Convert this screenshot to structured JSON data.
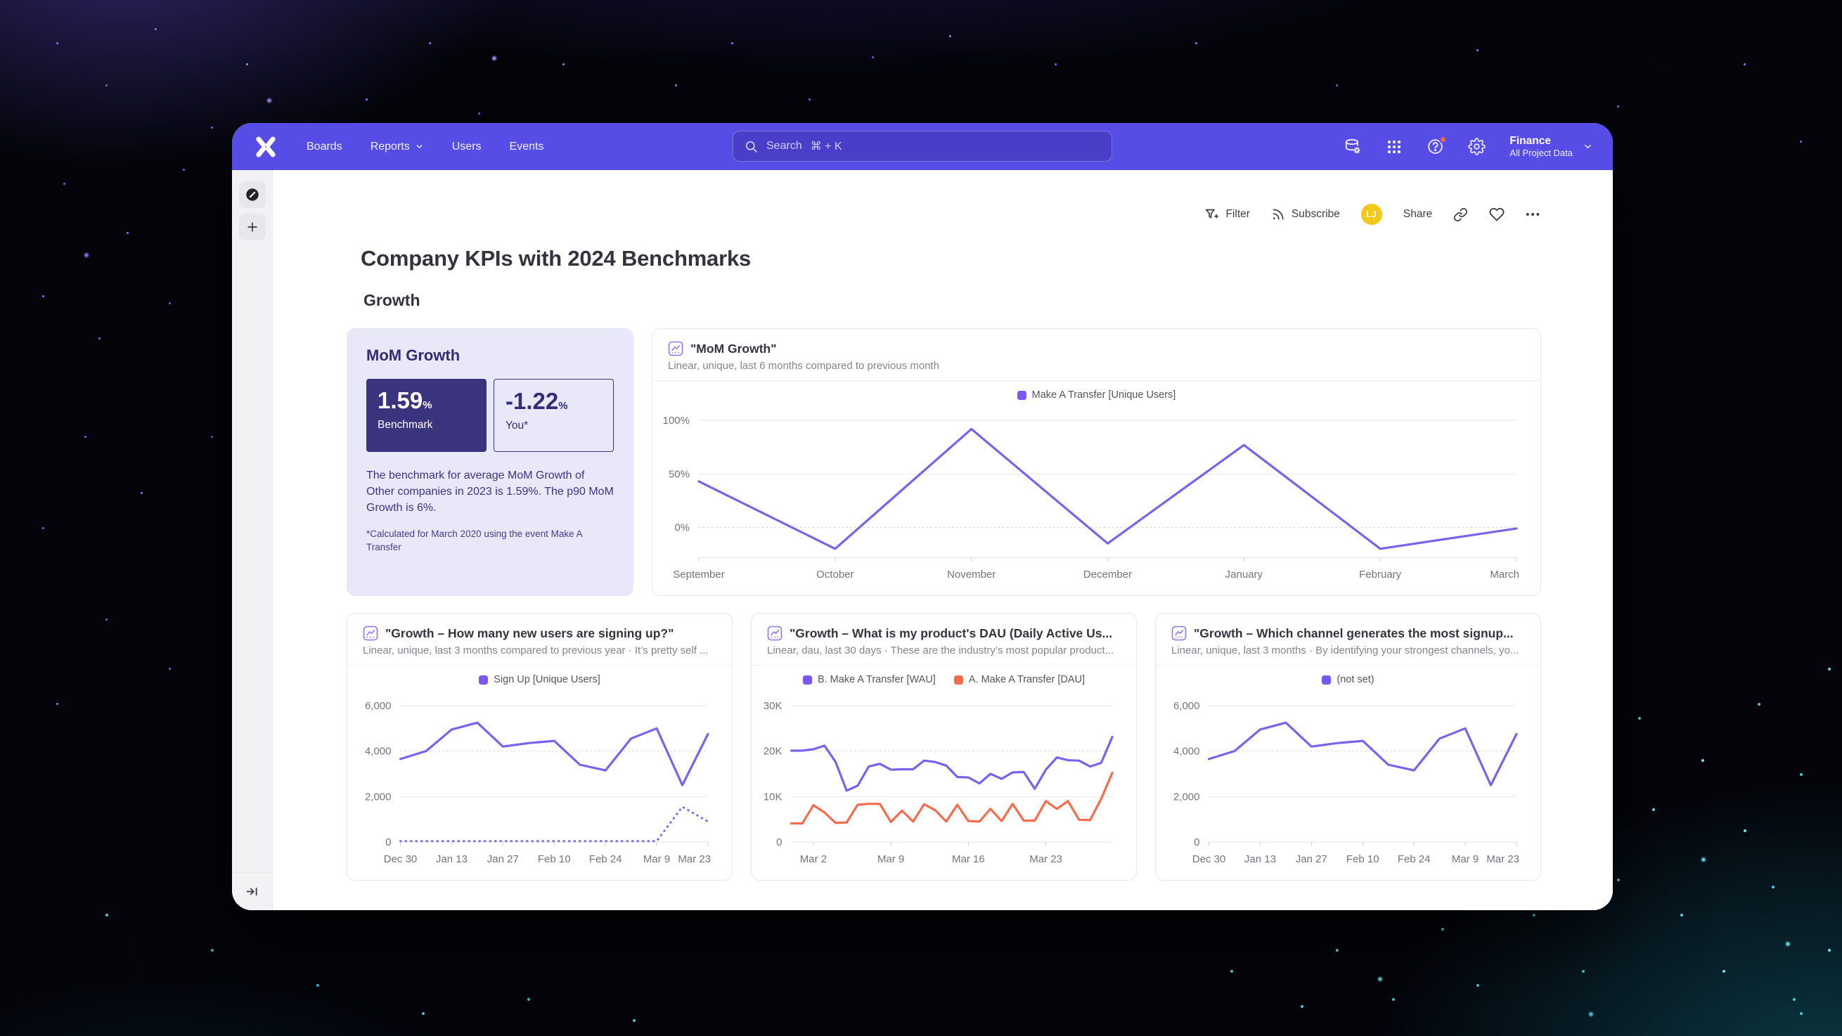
{
  "nav": {
    "items": [
      {
        "label": "Boards"
      },
      {
        "label": "Reports",
        "has_chevron": true
      },
      {
        "label": "Users"
      },
      {
        "label": "Events"
      }
    ],
    "search": {
      "label": "Search",
      "shortcut": "⌘ + K"
    },
    "project": {
      "name": "Finance",
      "scope": "All Project Data"
    }
  },
  "toolbar": {
    "filter_label": "Filter",
    "subscribe_label": "Subscribe",
    "avatar_initials": "LJ",
    "share_label": "Share",
    "more_label": "•••"
  },
  "page": {
    "title": "Company KPIs with 2024 Benchmarks",
    "section": "Growth"
  },
  "benchmark_card": {
    "title": "MoM Growth",
    "benchmark_value": "1.59",
    "benchmark_unit": "%",
    "benchmark_label": "Benchmark",
    "you_value": "-1.22",
    "you_unit": "%",
    "you_label": "You*",
    "description": "The benchmark for average MoM Growth of Other companies in 2023 is 1.59%. The p90 MoM Growth is 6%.",
    "footnote": "*Calculated for March 2020 using the event Make A Transfer"
  },
  "icons": [
    "mixpanel-logo",
    "chevron-down",
    "search",
    "data-gear",
    "apps-grid",
    "help",
    "settings",
    "filter-plus",
    "rss",
    "link",
    "heart",
    "ellipsis",
    "compass",
    "plus",
    "collapse-right",
    "chart-thumbnail"
  ],
  "colors": {
    "nav_accent": "#564ce6",
    "line_purple": "#7962f0",
    "line_orange": "#f76c4d",
    "legend_purple": "#7857f3",
    "avatar_bg": "#f3c819",
    "benchmark_dark": "#3a337e",
    "benchmark_card_bg": "#e9e8f9"
  },
  "chart_data": [
    {
      "id": "mom-growth",
      "type": "line",
      "title": "\"MoM Growth\"",
      "subtitle": "Linear, unique, last 6 months compared to previous month",
      "legend": [
        {
          "label": "Make A Transfer [Unique Users]",
          "color": "#7857f3"
        }
      ],
      "ticks": [
        {
          "index": 0,
          "label": "September"
        },
        {
          "index": 1,
          "label": "October"
        },
        {
          "index": 2,
          "label": "November"
        },
        {
          "index": 3,
          "label": "December"
        },
        {
          "index": 4,
          "label": "January"
        },
        {
          "index": 5,
          "label": "February"
        },
        {
          "index": 6,
          "label": "March"
        }
      ],
      "series": [
        {
          "name": "Make A Transfer [Unique Users]",
          "color": "#7962f0",
          "style": "solid",
          "values": [
            43,
            -20,
            92,
            -15,
            77,
            -20,
            -1
          ]
        }
      ],
      "ylim": [
        -28,
        108
      ],
      "yticks": [
        {
          "value": 0,
          "label": "0%",
          "dotted": true
        },
        {
          "value": 50,
          "label": "50%"
        },
        {
          "value": 100,
          "label": "100%"
        }
      ]
    },
    {
      "id": "growth-signups",
      "type": "line",
      "title": "\"Growth – How many new users are signing up?\"",
      "subtitle": "Linear, unique, last 3 months compared to previous year · It’s pretty self ...",
      "legend": [
        {
          "label": "Sign Up [Unique Users]",
          "color": "#7857f3"
        }
      ],
      "ticks": [
        {
          "index": 0,
          "label": "Dec 30"
        },
        {
          "index": 2,
          "label": "Jan 13"
        },
        {
          "index": 4,
          "label": "Jan 27"
        },
        {
          "index": 6,
          "label": "Feb 10"
        },
        {
          "index": 8,
          "label": "Feb 24"
        },
        {
          "index": 10,
          "label": "Mar 9"
        },
        {
          "index": 12,
          "label": "Mar 23"
        }
      ],
      "series": [
        {
          "name": "Sign Up [Unique Users]",
          "color": "#7962f0",
          "style": "solid",
          "values": [
            3650,
            4000,
            4950,
            5250,
            4200,
            4350,
            4450,
            3400,
            3150,
            4550,
            5000,
            2500,
            4750
          ]
        },
        {
          "name": "Sign Up [Unique Users] previous year",
          "color": "#7962f0",
          "style": "dotted",
          "values": [
            40,
            40,
            40,
            40,
            40,
            40,
            40,
            40,
            40,
            40,
            40,
            1550,
            900
          ]
        }
      ],
      "ylim": [
        0,
        6400
      ],
      "yticks": [
        {
          "value": 0,
          "label": "0"
        },
        {
          "value": 2000,
          "label": "2,000"
        },
        {
          "value": 4000,
          "label": "4,000",
          "dotted": true
        },
        {
          "value": 6000,
          "label": "6,000"
        }
      ]
    },
    {
      "id": "growth-dau",
      "type": "line",
      "title": "\"Growth – What is my product's DAU (Daily Active Us...",
      "subtitle": "Linear, dau, last 30 days · These are the industry’s most popular product...",
      "legend": [
        {
          "label": "B. Make A Transfer [WAU]",
          "color": "#7857f3"
        },
        {
          "label": "A. Make A Transfer [DAU]",
          "color": "#f76c4d"
        }
      ],
      "ticks": [
        {
          "index": 2,
          "label": "Mar 2"
        },
        {
          "index": 9,
          "label": "Mar 9"
        },
        {
          "index": 16,
          "label": "Mar 16"
        },
        {
          "index": 23,
          "label": "Mar 23"
        }
      ],
      "series": [
        {
          "name": "B. Make A Transfer [WAU]",
          "color": "#7962f0",
          "style": "solid",
          "values": [
            20100,
            20100,
            20400,
            21200,
            17600,
            11300,
            12400,
            16600,
            17200,
            15900,
            16000,
            16000,
            17900,
            17600,
            16800,
            14300,
            14200,
            12900,
            15000,
            13900,
            15300,
            15400,
            11700,
            15900,
            18600,
            18000,
            17900,
            16600,
            17400,
            23100
          ]
        },
        {
          "name": "A. Make A Transfer [DAU]",
          "color": "#f76c4d",
          "style": "solid",
          "values": [
            4100,
            4100,
            8100,
            6500,
            4200,
            4300,
            8200,
            8400,
            8400,
            4400,
            6900,
            4500,
            8300,
            7000,
            4500,
            8200,
            4600,
            4500,
            7300,
            4600,
            8400,
            4700,
            4700,
            9000,
            7300,
            9000,
            4900,
            4800,
            9500,
            15200
          ]
        }
      ],
      "ylim": [
        0,
        32000
      ],
      "yticks": [
        {
          "value": 0,
          "label": "0"
        },
        {
          "value": 10000,
          "label": "10K"
        },
        {
          "value": 20000,
          "label": "20K",
          "dotted": true
        },
        {
          "value": 30000,
          "label": "30K"
        }
      ]
    },
    {
      "id": "growth-channels",
      "type": "line",
      "title": "\"Growth – Which channel generates the most signup...",
      "subtitle": "Linear, unique, last 3 months · By identifying your strongest channels, yo...",
      "legend": [
        {
          "label": "(not set)",
          "color": "#7857f3"
        }
      ],
      "ticks": [
        {
          "index": 0,
          "label": "Dec 30"
        },
        {
          "index": 2,
          "label": "Jan 13"
        },
        {
          "index": 4,
          "label": "Jan 27"
        },
        {
          "index": 6,
          "label": "Feb 10"
        },
        {
          "index": 8,
          "label": "Feb 24"
        },
        {
          "index": 10,
          "label": "Mar 9"
        },
        {
          "index": 12,
          "label": "Mar 23"
        }
      ],
      "series": [
        {
          "name": "(not set)",
          "color": "#7962f0",
          "style": "solid",
          "values": [
            3650,
            4000,
            4950,
            5250,
            4200,
            4350,
            4450,
            3400,
            3150,
            4550,
            5000,
            2500,
            4750
          ]
        }
      ],
      "ylim": [
        0,
        6400
      ],
      "yticks": [
        {
          "value": 0,
          "label": "0"
        },
        {
          "value": 2000,
          "label": "2,000"
        },
        {
          "value": 4000,
          "label": "4,000",
          "dotted": true
        },
        {
          "value": 6000,
          "label": "6,000"
        }
      ]
    }
  ]
}
